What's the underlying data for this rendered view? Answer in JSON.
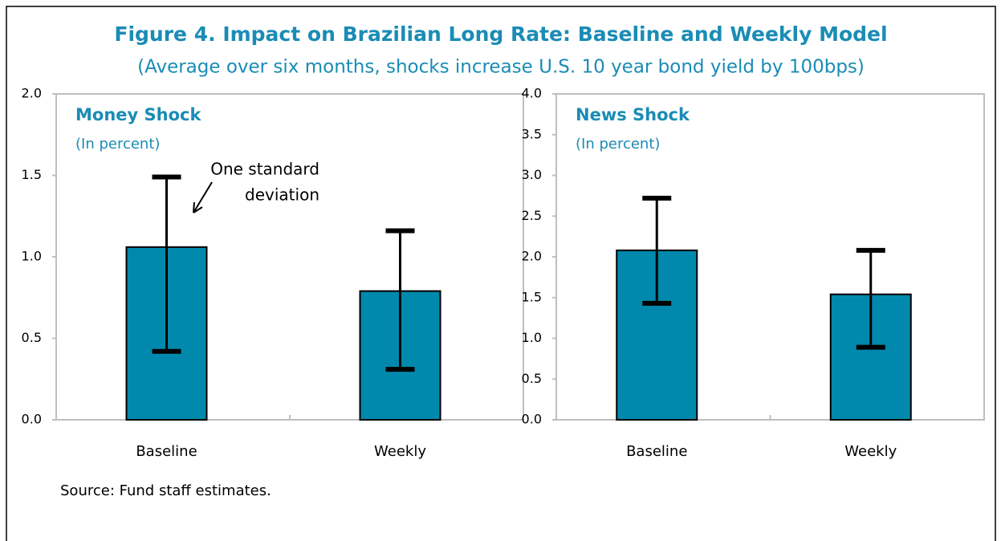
{
  "title": "Figure 4. Impact on Brazilian Long Rate: Baseline and Weekly Model",
  "subtitle": "(Average over six months, shocks increase U.S. 10 year bond yield by 100bps)",
  "source": "Source: Fund staff estimates.",
  "chart_data": [
    {
      "type": "bar",
      "title": "Money Shock",
      "subtitle": "(In percent)",
      "categories": [
        "Baseline",
        "Weekly"
      ],
      "values": [
        1.06,
        0.79
      ],
      "lower": [
        0.42,
        0.31
      ],
      "upper": [
        1.49,
        1.16
      ],
      "color": "#0089ad",
      "ylim": [
        0,
        2
      ],
      "yticks": [
        {
          "value": 0,
          "label": "0.0"
        },
        {
          "value": 0.5,
          "label": "0.5"
        },
        {
          "value": 1,
          "label": "1.0"
        },
        {
          "value": 1.5,
          "label": "1.5"
        },
        {
          "value": 2,
          "label": "2.0"
        }
      ],
      "annotation": [
        "One standard",
        "deviation"
      ]
    },
    {
      "type": "bar",
      "title": "News Shock",
      "subtitle": "(In percent)",
      "categories": [
        "Baseline",
        "Weekly"
      ],
      "values": [
        2.08,
        1.54
      ],
      "lower": [
        1.43,
        0.89
      ],
      "upper": [
        2.72,
        2.08
      ],
      "color": "#0089ad",
      "ylim": [
        0,
        4
      ],
      "yticks": [
        {
          "value": 0,
          "label": "0.0"
        },
        {
          "value": 0.5,
          "label": "0.5"
        },
        {
          "value": 1,
          "label": "1.0"
        },
        {
          "value": 1.5,
          "label": "1.5"
        },
        {
          "value": 2,
          "label": "2.0"
        },
        {
          "value": 2.5,
          "label": "2.5"
        },
        {
          "value": 3,
          "label": "3.0"
        },
        {
          "value": 3.5,
          "label": "3.5"
        },
        {
          "value": 4,
          "label": "4.0"
        }
      ]
    }
  ]
}
